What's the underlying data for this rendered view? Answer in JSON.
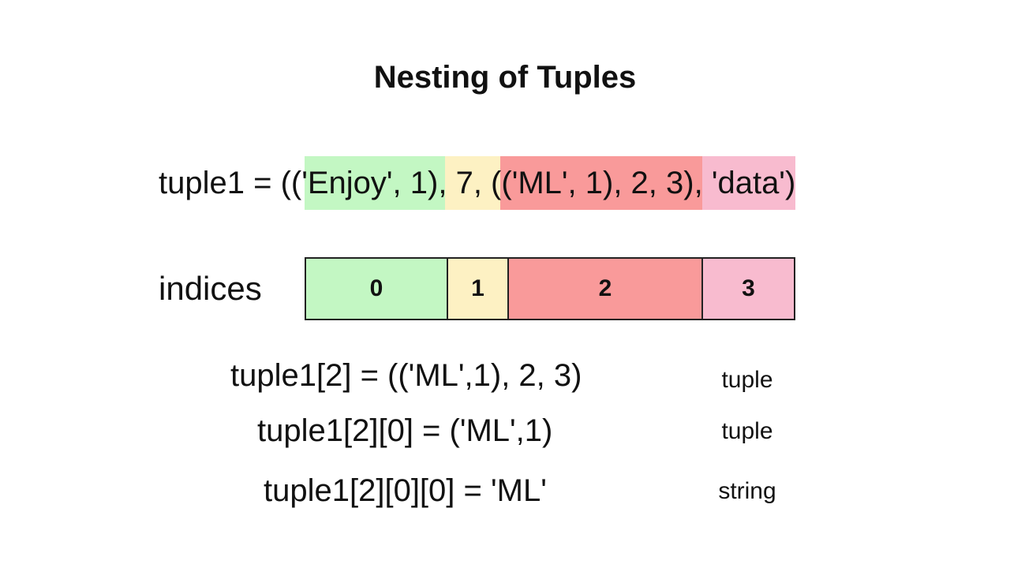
{
  "title": "Nesting of Tuples",
  "tuple_line": {
    "prefix": "tuple1 = (",
    "segments": [
      {
        "text": "('Enjoy', 1)",
        "color": "#c3f7c3"
      },
      {
        "text": ", 7, ",
        "color": "#fdf1c3"
      },
      {
        "text": "(('ML', 1), 2, 3)",
        "color": "#f99a9a"
      },
      {
        "text": ", 'data'",
        "color": "#f8bbcf"
      }
    ],
    "suffix": ")"
  },
  "indices": {
    "label": "indices",
    "cells": [
      {
        "label": "0",
        "color": "#c3f7c3"
      },
      {
        "label": "1",
        "color": "#fdf1c3"
      },
      {
        "label": "2",
        "color": "#f99a9a"
      },
      {
        "label": "3",
        "color": "#f8bbcf"
      }
    ]
  },
  "expressions": [
    {
      "expr": "tuple1[2] = (('ML',1), 2, 3)",
      "type": "tuple"
    },
    {
      "expr": "tuple1[2][0] = ('ML',1)",
      "type": "tuple"
    },
    {
      "expr": "tuple1[2][0][0] = 'ML'",
      "type": "string"
    }
  ]
}
